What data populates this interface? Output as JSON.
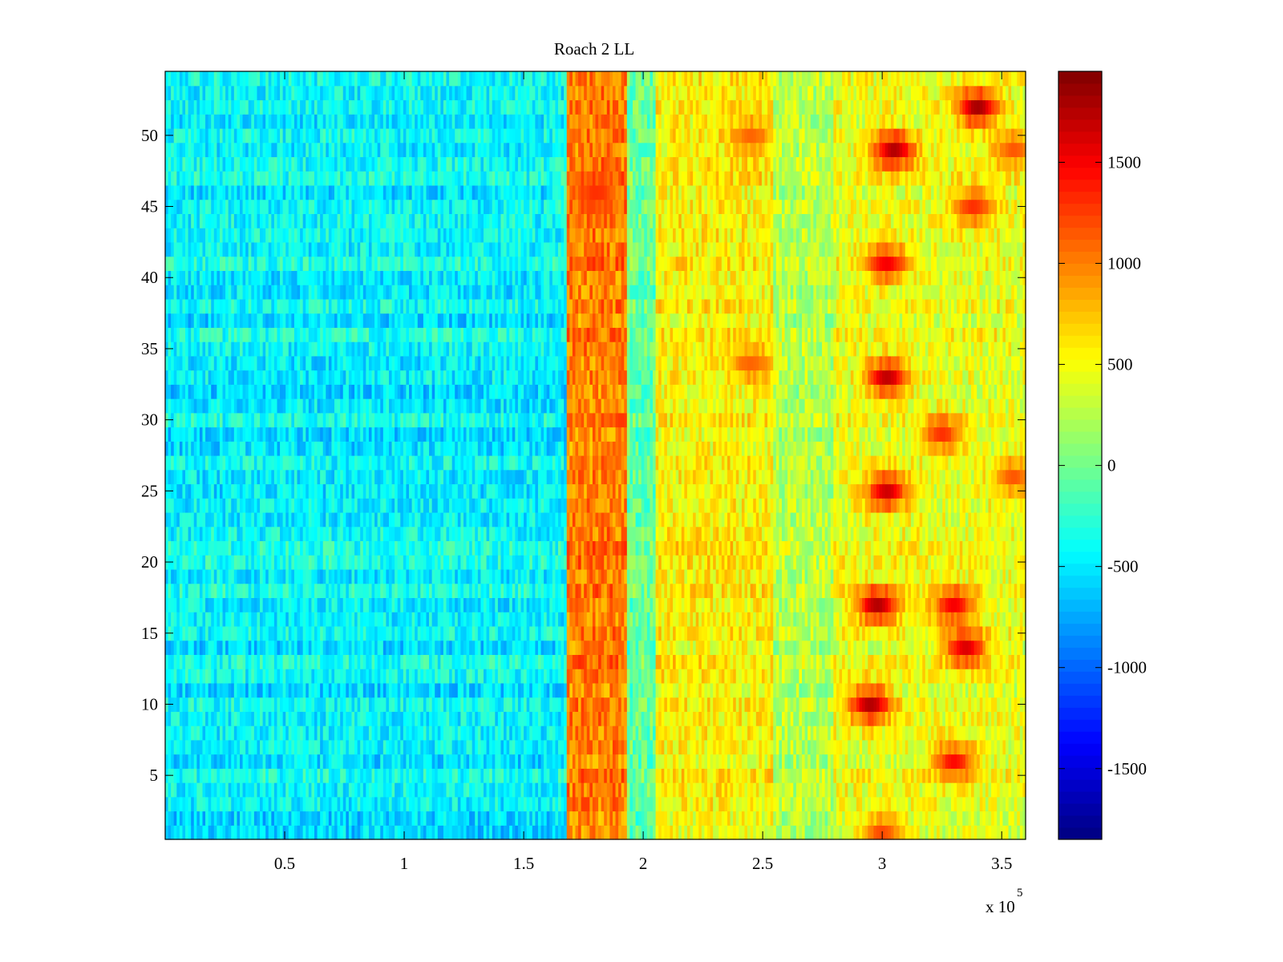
{
  "chart_data": {
    "type": "heatmap",
    "title": "Roach 2 LL",
    "xlabel": "",
    "ylabel": "",
    "x_multiplier_label": "x 10",
    "x_multiplier_exponent": "5",
    "xlim": [
      0,
      3.6
    ],
    "ylim": [
      0.5,
      54.5
    ],
    "x_ticks": [
      0.5,
      1,
      1.5,
      2,
      2.5,
      3,
      3.5
    ],
    "x_tick_labels": [
      "0.5",
      "1",
      "1.5",
      "2",
      "2.5",
      "3",
      "3.5"
    ],
    "y_ticks": [
      5,
      10,
      15,
      20,
      25,
      30,
      35,
      40,
      45,
      50
    ],
    "y_tick_labels": [
      "5",
      "10",
      "15",
      "20",
      "25",
      "30",
      "35",
      "40",
      "45",
      "50"
    ],
    "rows": 54,
    "colormap": "jet",
    "colorbar": {
      "clim": [
        -1850,
        1950
      ],
      "ticks": [
        -1500,
        -1000,
        -500,
        0,
        500,
        1000,
        1500
      ],
      "tick_labels": [
        "-1500",
        "-1000",
        "-500",
        "0",
        "500",
        "1000",
        "1500"
      ]
    },
    "regions": [
      {
        "x_range": [
          0,
          1.68
        ],
        "mean_value": -450,
        "description_value": "low"
      },
      {
        "x_range": [
          1.68,
          1.93
        ],
        "mean_value": 1000
      },
      {
        "x_range": [
          1.93,
          2.05
        ],
        "mean_value": -50
      },
      {
        "x_range": [
          2.05,
          2.55
        ],
        "mean_value": 550
      },
      {
        "x_range": [
          2.55,
          2.8
        ],
        "mean_value": 250
      },
      {
        "x_range": [
          2.8,
          3.6
        ],
        "mean_value": 450
      }
    ],
    "hotspots": [
      {
        "x": 2.98,
        "y": 17,
        "value": 1750
      },
      {
        "x": 3.3,
        "y": 17,
        "value": 1500
      },
      {
        "x": 2.95,
        "y": 10,
        "value": 1750
      },
      {
        "x": 3.05,
        "y": 49,
        "value": 1750
      },
      {
        "x": 3.4,
        "y": 52,
        "value": 1800
      },
      {
        "x": 3.35,
        "y": 14,
        "value": 1600
      },
      {
        "x": 3.3,
        "y": 6,
        "value": 1450
      },
      {
        "x": 3.02,
        "y": 33,
        "value": 1700
      },
      {
        "x": 3.02,
        "y": 25,
        "value": 1650
      },
      {
        "x": 3.02,
        "y": 41,
        "value": 1500
      },
      {
        "x": 3.25,
        "y": 29,
        "value": 1300
      },
      {
        "x": 3.38,
        "y": 45,
        "value": 1300
      },
      {
        "x": 3.55,
        "y": 26,
        "value": 1150
      },
      {
        "x": 3.55,
        "y": 49,
        "value": 1150
      },
      {
        "x": 3.0,
        "y": 1,
        "value": 1200
      },
      {
        "x": 2.45,
        "y": 34,
        "value": 1100
      },
      {
        "x": 2.45,
        "y": 50,
        "value": 1100
      },
      {
        "x": 1.8,
        "y": 46,
        "value": 1300
      }
    ]
  }
}
